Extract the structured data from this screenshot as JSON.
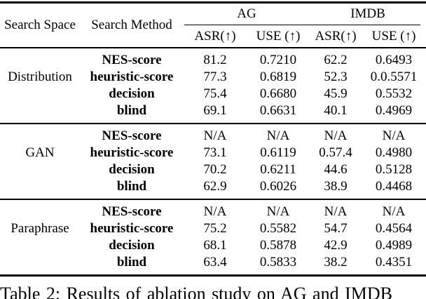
{
  "table": {
    "header": {
      "search_space": "Search Space",
      "search_method": "Search Method",
      "dataset_ag": "AG",
      "dataset_imdb": "IMDB",
      "sub": [
        "ASR(↑)",
        "USE (↑)",
        "ASR(↑)",
        "USE (↑)"
      ]
    },
    "groups": [
      {
        "space": "Distribution",
        "rows": [
          {
            "method": "NES-score",
            "values": [
              "81.2",
              "0.7210",
              "62.2",
              "0.6493"
            ]
          },
          {
            "method": "heuristic-score",
            "values": [
              "77.3",
              "0.6819",
              "52.3",
              "0.0.5571"
            ]
          },
          {
            "method": "decision",
            "values": [
              "75.4",
              "0.6680",
              "45.9",
              "0.5532"
            ]
          },
          {
            "method": "blind",
            "values": [
              "69.1",
              "0.6631",
              "40.1",
              "0.4969"
            ]
          }
        ]
      },
      {
        "space": "GAN",
        "rows": [
          {
            "method": "NES-score",
            "values": [
              "N/A",
              "N/A",
              "N/A",
              "N/A"
            ]
          },
          {
            "method": "heuristic-score",
            "values": [
              "73.1",
              "0.6119",
              "0.57.4",
              "0.4980"
            ]
          },
          {
            "method": "decision",
            "values": [
              "70.2",
              "0.6211",
              "44.6",
              "0.5128"
            ]
          },
          {
            "method": "blind",
            "values": [
              "62.9",
              "0.6026",
              "38.9",
              "0.4468"
            ]
          }
        ]
      },
      {
        "space": "Paraphrase",
        "rows": [
          {
            "method": "NES-score",
            "values": [
              "N/A",
              "N/A",
              "N/A",
              "N/A"
            ]
          },
          {
            "method": "heuristic-score",
            "values": [
              "75.2",
              "0.5582",
              "54.7",
              "0.4564"
            ]
          },
          {
            "method": "decision",
            "values": [
              "68.1",
              "0.5878",
              "42.9",
              "0.4989"
            ]
          },
          {
            "method": "blind",
            "values": [
              "63.4",
              "0.5833",
              "38.2",
              "0.4351"
            ]
          }
        ]
      }
    ]
  },
  "caption": "Table 2: Results of ablation study on AG and IMDB",
  "colors": {
    "text": "#000000",
    "background": "#ffffff",
    "rule": "#000000"
  }
}
